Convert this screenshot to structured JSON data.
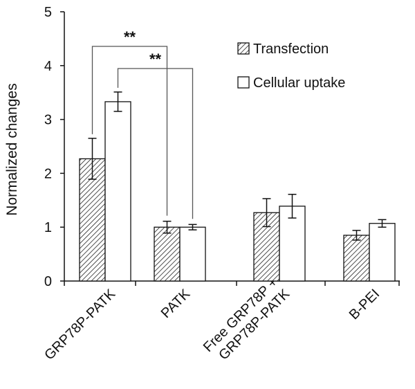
{
  "chart_data": {
    "type": "bar",
    "ylabel": "Normalized changes",
    "ylim": [
      0,
      5
    ],
    "yticks": [
      "0",
      "1",
      "2",
      "3",
      "4",
      "5"
    ],
    "categories": [
      [
        "GRP78P-PATK"
      ],
      [
        "PATK"
      ],
      [
        "Free GRP78P +",
        "GRP78P-PATK"
      ],
      [
        "B-PEI"
      ]
    ],
    "series": [
      {
        "name": "Transfection",
        "values": [
          2.27,
          1.0,
          1.27,
          0.85
        ],
        "errors": [
          0.38,
          0.11,
          0.26,
          0.09
        ],
        "pattern": "hatched"
      },
      {
        "name": "Cellular uptake",
        "values": [
          3.33,
          1.0,
          1.39,
          1.07
        ],
        "errors": [
          0.18,
          0.05,
          0.22,
          0.07
        ],
        "pattern": "open"
      }
    ],
    "legend_position": "top-right",
    "annotations": [
      {
        "label": "**",
        "from": {
          "category": 0,
          "series": 0
        },
        "to": {
          "category": 1,
          "series": 0
        }
      },
      {
        "label": "**",
        "from": {
          "category": 0,
          "series": 1
        },
        "to": {
          "category": 1,
          "series": 1
        }
      }
    ],
    "colors": {
      "axis": "#111111",
      "bar_fill": "#ffffff",
      "hatch": "#222222"
    }
  }
}
